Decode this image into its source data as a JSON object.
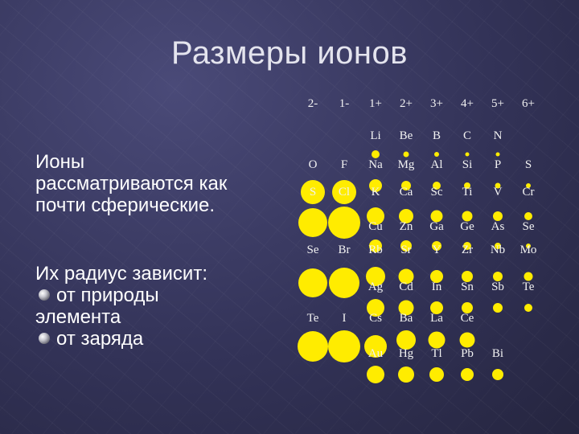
{
  "slide": {
    "title": "Размеры ионов",
    "text": {
      "line1": "Ионы",
      "line2": "рассматриваются   как",
      "line3": "почти сферические.",
      "line4": "Их радиус зависит:",
      "bullet1": "от  природы",
      "bullet1_cont": "элемента",
      "bullet2": "от заряда"
    }
  },
  "table": {
    "charges": [
      "2-",
      "1-",
      "1+",
      "2+",
      "3+",
      "4+",
      "5+",
      "6+"
    ],
    "ions": [
      {
        "s": "Li",
        "c": 2,
        "r": 1
      },
      {
        "s": "Be",
        "c": 3,
        "r": 1
      },
      {
        "s": "B",
        "c": 4,
        "r": 1
      },
      {
        "s": "C",
        "c": 5,
        "r": 1
      },
      {
        "s": "N",
        "c": 6,
        "r": 1
      },
      {
        "s": "O",
        "c": 0,
        "r": 2
      },
      {
        "s": "F",
        "c": 1,
        "r": 2
      },
      {
        "s": "Na",
        "c": 2,
        "r": 2
      },
      {
        "s": "Mg",
        "c": 3,
        "r": 2
      },
      {
        "s": "Al",
        "c": 4,
        "r": 2
      },
      {
        "s": "Si",
        "c": 5,
        "r": 2
      },
      {
        "s": "P",
        "c": 6,
        "r": 2
      },
      {
        "s": "S",
        "c": 7,
        "r": 2
      },
      {
        "s": "S",
        "c": 0,
        "r": 3
      },
      {
        "s": "Cl",
        "c": 1,
        "r": 3
      },
      {
        "s": "K",
        "c": 2,
        "r": 3
      },
      {
        "s": "Ca",
        "c": 3,
        "r": 3
      },
      {
        "s": "Sc",
        "c": 4,
        "r": 3
      },
      {
        "s": "Ti",
        "c": 5,
        "r": 3
      },
      {
        "s": "V",
        "c": 6,
        "r": 3
      },
      {
        "s": "Cr",
        "c": 7,
        "r": 3
      },
      {
        "s": "Cu",
        "c": 2,
        "r": 4
      },
      {
        "s": "Zn",
        "c": 3,
        "r": 4
      },
      {
        "s": "Ga",
        "c": 4,
        "r": 4
      },
      {
        "s": "Ge",
        "c": 5,
        "r": 4
      },
      {
        "s": "As",
        "c": 6,
        "r": 4
      },
      {
        "s": "Se",
        "c": 7,
        "r": 4
      },
      {
        "s": "Se",
        "c": 0,
        "r": 5
      },
      {
        "s": "Br",
        "c": 1,
        "r": 5
      },
      {
        "s": "Rb",
        "c": 2,
        "r": 5
      },
      {
        "s": "Sr",
        "c": 3,
        "r": 5
      },
      {
        "s": "Y",
        "c": 4,
        "r": 5
      },
      {
        "s": "Zr",
        "c": 5,
        "r": 5
      },
      {
        "s": "Nb",
        "c": 6,
        "r": 5
      },
      {
        "s": "Mo",
        "c": 7,
        "r": 5
      },
      {
        "s": "Ag",
        "c": 2,
        "r": 6
      },
      {
        "s": "Cd",
        "c": 3,
        "r": 6
      },
      {
        "s": "In",
        "c": 4,
        "r": 6
      },
      {
        "s": "Sn",
        "c": 5,
        "r": 6
      },
      {
        "s": "Sb",
        "c": 6,
        "r": 6
      },
      {
        "s": "Te",
        "c": 7,
        "r": 6
      },
      {
        "s": "Te",
        "c": 0,
        "r": 7
      },
      {
        "s": "I",
        "c": 1,
        "r": 7
      },
      {
        "s": "Cs",
        "c": 2,
        "r": 7
      },
      {
        "s": "Ba",
        "c": 3,
        "r": 7
      },
      {
        "s": "La",
        "c": 4,
        "r": 7
      },
      {
        "s": "Ce",
        "c": 5,
        "r": 7
      },
      {
        "s": "Au",
        "c": 2,
        "r": 8
      },
      {
        "s": "Hg",
        "c": 3,
        "r": 8
      },
      {
        "s": "Tl",
        "c": 4,
        "r": 8
      },
      {
        "s": "Pb",
        "c": 5,
        "r": 8
      },
      {
        "s": "Bi",
        "c": 6,
        "r": 8
      }
    ]
  },
  "colors": {
    "ion": "#ffec00",
    "background": "#333358"
  }
}
